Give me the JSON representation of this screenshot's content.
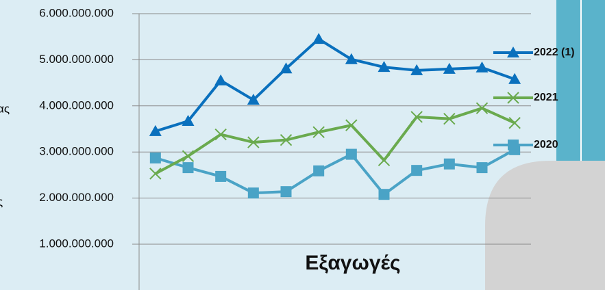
{
  "chart_data": {
    "type": "line",
    "categories": [
      null,
      null,
      null,
      null,
      null,
      null,
      null,
      null,
      null,
      null,
      null,
      null
    ],
    "series": [
      {
        "name": "2022 (1)",
        "color": "#0a70bd",
        "marker": "triangle",
        "values": [
          3450000000,
          3670000000,
          4550000000,
          4130000000,
          4810000000,
          5450000000,
          5010000000,
          4840000000,
          4770000000,
          4800000000,
          4830000000,
          4580000000
        ]
      },
      {
        "name": "2021",
        "color": "#6aaa4e",
        "marker": "cross",
        "values": [
          2530000000,
          2910000000,
          3380000000,
          3210000000,
          3260000000,
          3430000000,
          3580000000,
          2820000000,
          3760000000,
          3720000000,
          3950000000,
          3630000000
        ]
      },
      {
        "name": "2020",
        "color": "#4aa3c6",
        "marker": "square",
        "values": [
          2870000000,
          2660000000,
          2470000000,
          2110000000,
          2140000000,
          2590000000,
          2950000000,
          2080000000,
          2600000000,
          2740000000,
          2660000000,
          3050000000
        ]
      }
    ],
    "ylim": [
      0,
      6000000000
    ],
    "yticks": [
      {
        "value": 1000000000,
        "label": "1.000.000.000"
      },
      {
        "value": 2000000000,
        "label": "2.000.000.000"
      },
      {
        "value": 3000000000,
        "label": "3.000.000.000"
      },
      {
        "value": 4000000000,
        "label": "4.000.000.000"
      },
      {
        "value": 5000000000,
        "label": "5.000.000.000"
      },
      {
        "value": 6000000000,
        "label": "6.000.000.000"
      }
    ],
    "grid": true,
    "legend": "right",
    "annotations": [
      {
        "text": "Εξαγωγές"
      }
    ],
    "fragments": [
      "ας",
      "ς"
    ]
  }
}
